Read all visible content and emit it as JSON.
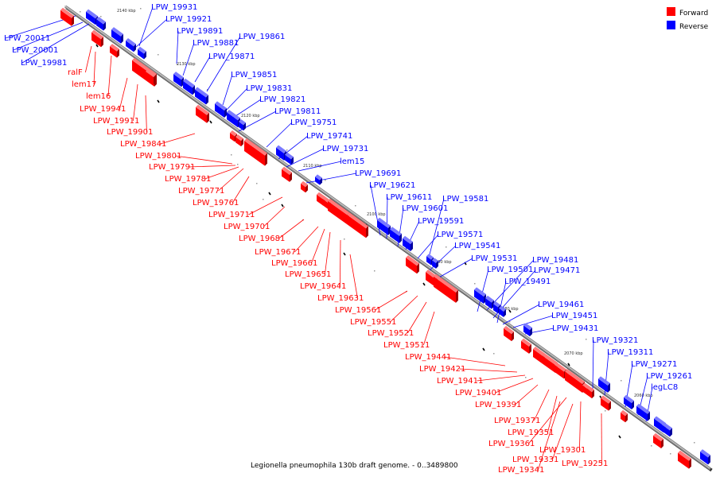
{
  "caption": "Legionella pneumophila 130b draft genome. - 0..3489800",
  "legend": [
    {
      "label": "Forward",
      "color": "#ff0000"
    },
    {
      "label": "Reverse",
      "color": "#0000ff"
    }
  ],
  "colors": {
    "forward": "#ff0000",
    "reverse": "#0000ff",
    "backbone": "#888888"
  },
  "ticks": [
    "2140 kbp",
    "2130 kbp",
    "2120 kbp",
    "2110 kbp",
    "2100 kbp",
    "2090 kbp",
    "2080 kbp",
    "2070 kbp",
    "2060 kbp"
  ],
  "forward_labels": [
    "ralF",
    "lem17",
    "lem16",
    "LPW_19941",
    "LPW_19911",
    "LPW_19901",
    "LPW_19841",
    "LPW_19801",
    "LPW_19791",
    "LPW_19781",
    "LPW_19771",
    "LPW_19761",
    "LPW_19711",
    "LPW_19701",
    "LPW_19681",
    "LPW_19671",
    "LPW_19661",
    "LPW_19651",
    "LPW_19641",
    "LPW_19631",
    "LPW_19561",
    "LPW_19551",
    "LPW_19521",
    "LPW_19511",
    "LPW_19441",
    "LPW_19421",
    "LPW_19411",
    "LPW_19401",
    "LPW_19391",
    "LPW_19371",
    "LPW_19351",
    "LPW_19361",
    "LPW_19301",
    "LPW_19331",
    "LPW_19341",
    "LPW_19251"
  ],
  "reverse_labels": [
    "LPW_19931",
    "LPW_19921",
    "LPW_19891",
    "LPW_19881",
    "LPW_19871",
    "LPW_19861",
    "LPW_20011",
    "LPW_20001",
    "LPW_19981",
    "LPW_19851",
    "LPW_19831",
    "LPW_19821",
    "LPW_19811",
    "LPW_19751",
    "LPW_19741",
    "LPW_19731",
    "lem15",
    "LPW_19691",
    "LPW_19621",
    "LPW_19611",
    "LPW_19601",
    "LPW_19581",
    "LPW_19591",
    "LPW_19571",
    "LPW_19541",
    "LPW_19531",
    "LPW_19481",
    "LPW_19501",
    "LPW_19471",
    "LPW_19491",
    "LPW_19461",
    "LPW_19451",
    "LPW_19431",
    "LPW_19321",
    "LPW_19311",
    "LPW_19271",
    "LPW_19261",
    "legLC8"
  ]
}
